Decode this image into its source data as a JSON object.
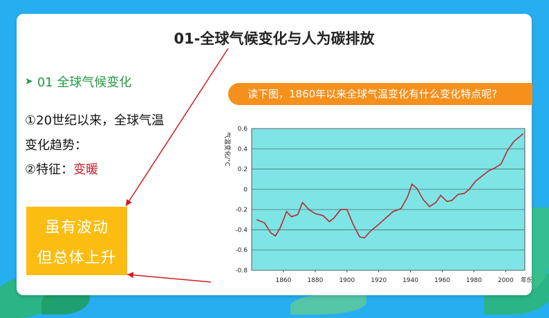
{
  "slide": {
    "title": "01-全球气候变化与人为碳排放",
    "section_label": "01 全球气候变化",
    "question": "读下图，1860年以来全球气温变化有什么变化特点呢?",
    "q_line1": "①20世纪以来，全球气温",
    "q_line2": "变化趋势：",
    "q_line3_prefix": "②特征：",
    "q_line3_answer": "变暖",
    "answer_line1": "虽有波动",
    "answer_line2": "但总体上升"
  },
  "colors": {
    "background": "#27aef0",
    "accent_orange": "#f5901c",
    "answer_box": "#fbbd12",
    "red": "#c0202a",
    "chart_bg": "#7fe4e6",
    "series": "#b5282a"
  },
  "chart_data": {
    "type": "line",
    "title": "",
    "xlabel": "年份",
    "ylabel": "气温变化/°C",
    "xlim": [
      1840,
      2012
    ],
    "ylim": [
      -0.8,
      0.6
    ],
    "x_ticks": [
      "1860",
      "1880",
      "1900",
      "1920",
      "1940",
      "1960",
      "1980",
      "2000"
    ],
    "y_ticks": [
      "0.6",
      "0.4",
      "0.2",
      "0",
      "-0.2",
      "-0.4",
      "-0.6",
      "-0.8"
    ],
    "grid": true,
    "series": [
      {
        "x": [
          1843,
          1848,
          1852,
          1855,
          1858,
          1862,
          1865,
          1869,
          1872,
          1876,
          1880,
          1885,
          1889,
          1892,
          1896,
          1900,
          1904,
          1908,
          1911,
          1915,
          1919,
          1924,
          1929,
          1934,
          1938,
          1941,
          1944,
          1948,
          1952,
          1956,
          1959,
          1963,
          1966,
          1970,
          1974,
          1977,
          1981,
          1985,
          1989,
          1993,
          1997,
          2001,
          2005,
          2011
        ],
        "y": [
          -0.3,
          -0.33,
          -0.43,
          -0.46,
          -0.38,
          -0.22,
          -0.27,
          -0.25,
          -0.13,
          -0.2,
          -0.24,
          -0.26,
          -0.32,
          -0.28,
          -0.2,
          -0.2,
          -0.35,
          -0.47,
          -0.48,
          -0.41,
          -0.36,
          -0.29,
          -0.22,
          -0.19,
          -0.08,
          0.05,
          0.01,
          -0.1,
          -0.17,
          -0.13,
          -0.06,
          -0.12,
          -0.11,
          -0.05,
          -0.04,
          0.0,
          0.08,
          0.13,
          0.18,
          0.21,
          0.25,
          0.38,
          0.47,
          0.55
        ]
      }
    ]
  }
}
